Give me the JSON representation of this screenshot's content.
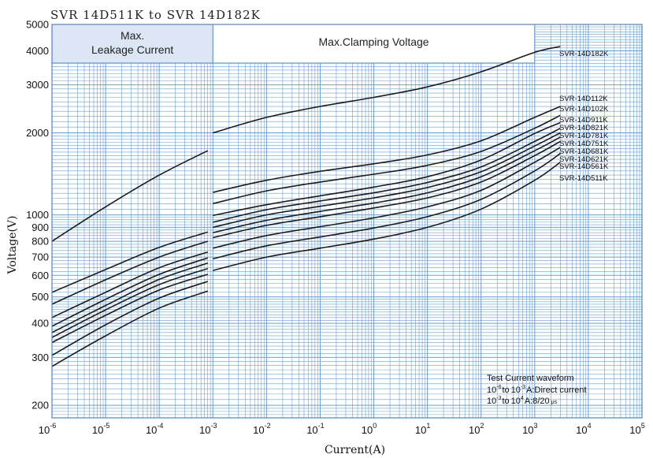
{
  "chart_data": {
    "type": "line",
    "title": "SVR 14D511K to SVR 14D182K",
    "xlabel": "Current(A)",
    "ylabel": "Voltage(V)",
    "x_scale": "log",
    "y_scale": "log",
    "xlim": [
      1e-06,
      100000.0
    ],
    "ylim": [
      180,
      5000
    ],
    "x_ticks": [
      {
        "v": 1e-06,
        "base": "10",
        "exp": "-6"
      },
      {
        "v": 1e-05,
        "base": "10",
        "exp": "-5"
      },
      {
        "v": 0.0001,
        "base": "10",
        "exp": "-4"
      },
      {
        "v": 0.001,
        "base": "10",
        "exp": "-3"
      },
      {
        "v": 0.01,
        "base": "10",
        "exp": "-2"
      },
      {
        "v": 0.1,
        "base": "10",
        "exp": "-1"
      },
      {
        "v": 1,
        "base": "10",
        "exp": "0"
      },
      {
        "v": 10,
        "base": "10",
        "exp": "1"
      },
      {
        "v": 100,
        "base": "10",
        "exp": "2"
      },
      {
        "v": 1000,
        "base": "10",
        "exp": "3"
      },
      {
        "v": 10000,
        "base": "10",
        "exp": "4"
      },
      {
        "v": 100000,
        "base": "10",
        "exp": "5"
      }
    ],
    "y_ticks": [
      {
        "v": 5000,
        "label": "5000"
      },
      {
        "v": 4000,
        "label": "4000"
      },
      {
        "v": 3000,
        "label": "3000"
      },
      {
        "v": 2000,
        "label": "2000"
      },
      {
        "v": 1000,
        "label": "1000"
      },
      {
        "v": 900,
        "label": "900"
      },
      {
        "v": 800,
        "label": "800"
      },
      {
        "v": 700,
        "label": "700"
      },
      {
        "v": 600,
        "label": "600"
      },
      {
        "v": 500,
        "label": "500"
      },
      {
        "v": 400,
        "label": "400"
      },
      {
        "v": 300,
        "label": "300"
      },
      {
        "v": 200,
        "label": "200"
      }
    ],
    "regions": {
      "leakage": {
        "label_line1": "Max.",
        "label_line2": "Leakage Current",
        "x_range": [
          1e-06,
          0.001
        ],
        "color": "#dce6f5"
      },
      "clamping": {
        "label": "Max.Clamping Voltage",
        "x_range": [
          0.001,
          1000
        ]
      }
    },
    "grid": true,
    "grid_color": "#6a9fd8",
    "line_color": "#1a1a1a",
    "annotation": {
      "line1": "Test Current waveform",
      "line2": {
        "a": "10",
        "a_exp": "-6",
        "b": "to",
        "c": "10",
        "c_exp": "-3",
        "d": "A:Direct current"
      },
      "line3": {
        "a": "10",
        "a_exp": "-3",
        "b": "to",
        "c": "10",
        "c_exp": "4",
        "d": "A:8/20",
        "unit": "μs"
      }
    },
    "series": [
      {
        "name": "SVR-14D182K",
        "leakage": [
          [
            1e-06,
            800
          ],
          [
            1e-05,
            1070
          ],
          [
            0.0001,
            1400
          ],
          [
            0.0008,
            1720
          ]
        ],
        "clamping": [
          [
            0.001,
            2000
          ],
          [
            0.01,
            2280
          ],
          [
            0.1,
            2500
          ],
          [
            1,
            2700
          ],
          [
            10,
            2950
          ],
          [
            100,
            3350
          ],
          [
            1000,
            3950
          ],
          [
            3000,
            4150
          ]
        ]
      },
      {
        "name": "SVR-14D112K",
        "leakage": [
          [
            1e-06,
            520
          ],
          [
            1e-05,
            630
          ],
          [
            0.0001,
            760
          ],
          [
            0.0008,
            865
          ]
        ],
        "clamping": [
          [
            0.001,
            1210
          ],
          [
            0.01,
            1340
          ],
          [
            0.1,
            1445
          ],
          [
            1,
            1540
          ],
          [
            10,
            1660
          ],
          [
            100,
            1870
          ],
          [
            1000,
            2280
          ],
          [
            3000,
            2500
          ]
        ]
      },
      {
        "name": "SVR-14D102K",
        "leakage": [
          [
            1e-06,
            470
          ],
          [
            1e-05,
            578
          ],
          [
            0.0001,
            700
          ],
          [
            0.0008,
            800
          ]
        ],
        "clamping": [
          [
            0.001,
            1100
          ],
          [
            0.01,
            1225
          ],
          [
            0.1,
            1320
          ],
          [
            1,
            1410
          ],
          [
            10,
            1520
          ],
          [
            100,
            1710
          ],
          [
            1000,
            2080
          ],
          [
            3000,
            2320
          ]
        ]
      },
      {
        "name": "SVR-14D911K",
        "leakage": [
          [
            1e-06,
            420
          ],
          [
            1e-05,
            520
          ],
          [
            0.0001,
            640
          ],
          [
            0.0008,
            730
          ]
        ],
        "clamping": [
          [
            0.001,
            995
          ],
          [
            0.01,
            1090
          ],
          [
            0.1,
            1175
          ],
          [
            1,
            1265
          ],
          [
            10,
            1380
          ],
          [
            100,
            1590
          ],
          [
            1000,
            1990
          ],
          [
            3000,
            2180
          ]
        ]
      },
      {
        "name": "SVR-14D821K",
        "leakage": [
          [
            1e-06,
            390
          ],
          [
            1e-05,
            490
          ],
          [
            0.0001,
            605
          ],
          [
            0.0008,
            695
          ]
        ],
        "clamping": [
          [
            0.001,
            940
          ],
          [
            0.01,
            1045
          ],
          [
            0.1,
            1125
          ],
          [
            1,
            1205
          ],
          [
            10,
            1315
          ],
          [
            100,
            1500
          ],
          [
            1000,
            1860
          ],
          [
            3000,
            2080
          ]
        ]
      },
      {
        "name": "SVR-14D781K",
        "leakage": [
          [
            1e-06,
            370
          ],
          [
            1e-05,
            465
          ],
          [
            0.0001,
            580
          ],
          [
            0.0008,
            665
          ]
        ],
        "clamping": [
          [
            0.001,
            900
          ],
          [
            0.01,
            1000
          ],
          [
            0.1,
            1075
          ],
          [
            1,
            1155
          ],
          [
            10,
            1260
          ],
          [
            100,
            1440
          ],
          [
            1000,
            1790
          ],
          [
            3000,
            2000
          ]
        ]
      },
      {
        "name": "SVR-14D751K",
        "leakage": [
          [
            1e-06,
            355
          ],
          [
            1e-05,
            448
          ],
          [
            0.0001,
            555
          ],
          [
            0.0008,
            635
          ]
        ],
        "clamping": [
          [
            0.001,
            860
          ],
          [
            0.01,
            955
          ],
          [
            0.1,
            1030
          ],
          [
            1,
            1105
          ],
          [
            10,
            1205
          ],
          [
            100,
            1380
          ],
          [
            1000,
            1720
          ],
          [
            3000,
            1930
          ]
        ]
      },
      {
        "name": "SVR-14D681K",
        "leakage": [
          [
            1e-06,
            340
          ],
          [
            1e-05,
            428
          ],
          [
            0.0001,
            530
          ],
          [
            0.0008,
            605
          ]
        ],
        "clamping": [
          [
            0.001,
            825
          ],
          [
            0.01,
            915
          ],
          [
            0.1,
            985
          ],
          [
            1,
            1060
          ],
          [
            10,
            1155
          ],
          [
            100,
            1320
          ],
          [
            1000,
            1650
          ],
          [
            3000,
            1860
          ]
        ]
      },
      {
        "name": "SVR-14D621K",
        "leakage": [
          [
            1e-06,
            305
          ],
          [
            1e-05,
            395
          ],
          [
            0.0001,
            495
          ],
          [
            0.0008,
            570
          ]
        ],
        "clamping": [
          [
            0.001,
            755
          ],
          [
            0.01,
            840
          ],
          [
            0.1,
            905
          ],
          [
            1,
            975
          ],
          [
            10,
            1070
          ],
          [
            100,
            1230
          ],
          [
            1000,
            1560
          ],
          [
            3000,
            1770
          ]
        ]
      },
      {
        "name": "SVR-14D561K",
        "leakage": [
          [
            1e-06,
            278
          ],
          [
            1e-05,
            360
          ],
          [
            0.0001,
            455
          ],
          [
            0.0008,
            525
          ]
        ],
        "clamping": [
          [
            0.001,
            690
          ],
          [
            0.01,
            770
          ],
          [
            0.1,
            830
          ],
          [
            1,
            895
          ],
          [
            10,
            985
          ],
          [
            100,
            1140
          ],
          [
            1000,
            1450
          ],
          [
            3000,
            1680
          ]
        ]
      },
      {
        "name": "SVR-14D511K",
        "leakage": [],
        "clamping": [
          [
            0.001,
            625
          ],
          [
            0.01,
            700
          ],
          [
            0.1,
            755
          ],
          [
            1,
            815
          ],
          [
            10,
            900
          ],
          [
            100,
            1050
          ],
          [
            1000,
            1340
          ],
          [
            3000,
            1560
          ]
        ]
      }
    ]
  }
}
